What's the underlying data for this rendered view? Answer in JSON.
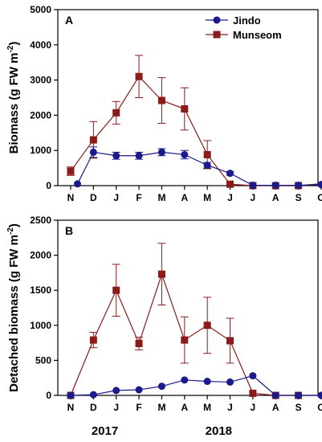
{
  "chart_data": [
    {
      "type": "line",
      "panel_label": "A",
      "title": "",
      "ylabel": "Biomass (g FW m⁻²)",
      "ylabel_main": "Biomass (g FW m",
      "ylabel_sup": "-2",
      "ylabel_close": ")",
      "ylim": [
        0,
        5000
      ],
      "yticks": [
        0,
        1000,
        2000,
        3000,
        4000,
        5000
      ],
      "categories": [
        "N",
        "D",
        "J",
        "F",
        "M",
        "A",
        "M",
        "J",
        "J",
        "A",
        "S",
        "O"
      ],
      "legend_position": "top-right",
      "series": [
        {
          "name": "Jindo",
          "color": "#1a1a8c",
          "marker": "circle",
          "x": [
            0.3,
            1,
            2,
            3,
            4,
            5,
            6,
            7,
            8,
            9,
            10,
            11
          ],
          "values": [
            50,
            950,
            850,
            850,
            950,
            880,
            580,
            350,
            10,
            10,
            10,
            30
          ],
          "errors": [
            0,
            150,
            100,
            100,
            100,
            120,
            80,
            50,
            0,
            0,
            0,
            0
          ]
        },
        {
          "name": "Munseom",
          "color": "#8b1a1a",
          "marker": "square",
          "x": [
            0,
            1,
            2,
            3,
            4,
            5,
            6,
            7,
            8,
            9,
            10,
            11.6
          ],
          "values": [
            410,
            1300,
            2070,
            3100,
            2420,
            2180,
            880,
            40,
            0,
            0,
            0,
            90
          ],
          "errors": [
            120,
            520,
            320,
            600,
            650,
            600,
            400,
            0,
            0,
            0,
            0,
            0
          ]
        }
      ]
    },
    {
      "type": "line",
      "panel_label": "B",
      "title": "",
      "ylabel": "Detached biomass (g FW m⁻²)",
      "ylabel_main": "Detached biomass (g FW m",
      "ylabel_sup": "-2",
      "ylabel_close": ")",
      "ylim": [
        0,
        2500
      ],
      "yticks": [
        0,
        500,
        1000,
        1500,
        2000,
        2500
      ],
      "categories": [
        "N",
        "D",
        "J",
        "F",
        "M",
        "A",
        "M",
        "J",
        "J",
        "A",
        "S",
        "O"
      ],
      "year_labels": [
        {
          "text": "2017",
          "at": 1.5
        },
        {
          "text": "2018",
          "at": 6.5
        }
      ],
      "series": [
        {
          "name": "Jindo",
          "color": "#1a1a8c",
          "marker": "circle",
          "x": [
            0,
            1,
            2,
            3,
            4,
            5,
            6,
            7,
            8,
            9,
            10,
            11
          ],
          "values": [
            0,
            10,
            70,
            80,
            130,
            220,
            200,
            190,
            280,
            0,
            0,
            0
          ],
          "errors": [
            0,
            0,
            0,
            0,
            0,
            0,
            0,
            0,
            0,
            0,
            0,
            0
          ]
        },
        {
          "name": "Munseom",
          "color": "#8b1a1a",
          "marker": "square",
          "x": [
            0,
            1,
            2,
            3,
            4,
            5,
            6,
            7,
            8,
            9,
            10,
            11.6
          ],
          "values": [
            0,
            790,
            1500,
            740,
            1730,
            790,
            1000,
            780,
            30,
            0,
            0,
            0
          ],
          "errors": [
            0,
            110,
            370,
            90,
            440,
            330,
            400,
            320,
            0,
            0,
            0,
            0
          ]
        }
      ]
    }
  ]
}
